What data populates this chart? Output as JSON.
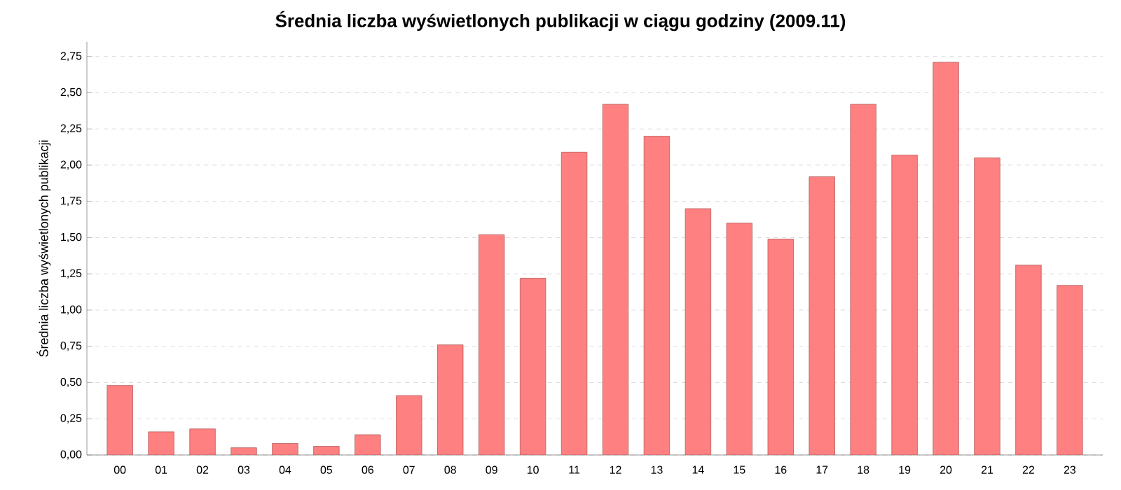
{
  "chart_data": {
    "type": "bar",
    "title": "Średnia liczba wyświetlonych publikacji w ciągu godziny (2009.11)",
    "ylabel": "Średnia liczba wyświetlonych publikacji",
    "categories": [
      "00",
      "01",
      "02",
      "03",
      "04",
      "05",
      "06",
      "07",
      "08",
      "09",
      "10",
      "11",
      "12",
      "13",
      "14",
      "15",
      "16",
      "17",
      "18",
      "19",
      "20",
      "21",
      "22",
      "23"
    ],
    "values": [
      0.48,
      0.16,
      0.18,
      0.05,
      0.08,
      0.06,
      0.14,
      0.41,
      0.76,
      1.52,
      1.22,
      2.09,
      2.42,
      2.2,
      1.7,
      1.6,
      1.49,
      1.92,
      2.42,
      2.07,
      2.71,
      2.05,
      1.31,
      1.17
    ],
    "color": "#ff8080",
    "ylim": [
      0,
      2.85
    ],
    "yticks": [
      {
        "value": 0,
        "label": "0,00"
      },
      {
        "value": 0.25,
        "label": "0,25"
      },
      {
        "value": 0.5,
        "label": "0,50"
      },
      {
        "value": 0.75,
        "label": "0,75"
      },
      {
        "value": 1,
        "label": "1,00"
      },
      {
        "value": 1.25,
        "label": "1,25"
      },
      {
        "value": 1.5,
        "label": "1,50"
      },
      {
        "value": 1.75,
        "label": "1,75"
      },
      {
        "value": 2,
        "label": "2,00"
      },
      {
        "value": 2.25,
        "label": "2,25"
      },
      {
        "value": 2.5,
        "label": "2,50"
      },
      {
        "value": 2.75,
        "label": "2,75"
      }
    ],
    "grid": "y"
  }
}
